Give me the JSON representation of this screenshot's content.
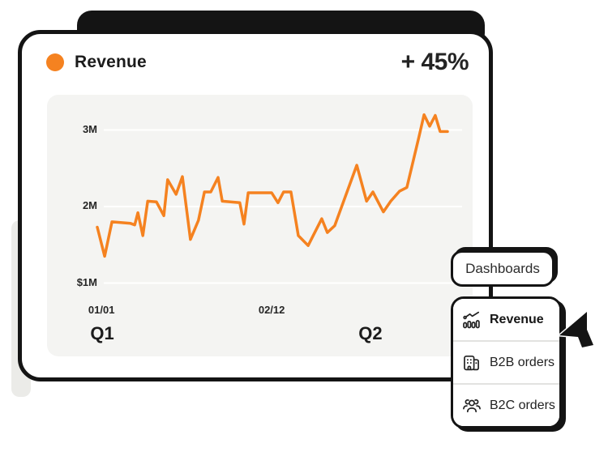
{
  "card": {
    "title": "Revenue",
    "delta": "+ 45%"
  },
  "overlay": {
    "dashboards_button": {
      "label": "Dashboards"
    },
    "menu": {
      "items": [
        {
          "label": "Revenue",
          "icon": "bar-chart-trend-icon",
          "active": true
        },
        {
          "label": "B2B orders",
          "icon": "building-icon",
          "active": false
        },
        {
          "label": "B2C orders",
          "icon": "people-group-icon",
          "active": false
        }
      ]
    }
  },
  "colors": {
    "accent_orange": "#F58220",
    "ink": "#141414",
    "panel_gray": "#f4f4f2",
    "gridline": "#ffffff"
  },
  "chart_data": {
    "type": "line",
    "title": "Revenue",
    "y_unit": "millions USD",
    "ylim": [
      1,
      3.4
    ],
    "grid": "horizontal",
    "legend": "none",
    "line_color": "#F58220",
    "y_ticks": [
      {
        "label": "$1M",
        "value": 1
      },
      {
        "label": "2M",
        "value": 2
      },
      {
        "label": "3M",
        "value": 3
      }
    ],
    "x_ticks": [
      {
        "label": "01/01",
        "pos": 0.012
      },
      {
        "label": "02/12",
        "pos": 0.498
      }
    ],
    "period_labels": [
      {
        "label": "Q1",
        "pos": 0.014
      },
      {
        "label": "Q2",
        "pos": 0.78
      }
    ],
    "series": [
      {
        "name": "Revenue",
        "points": [
          [
            0.0,
            1.73
          ],
          [
            0.021,
            1.35
          ],
          [
            0.042,
            1.8
          ],
          [
            0.095,
            1.78
          ],
          [
            0.107,
            1.76
          ],
          [
            0.116,
            1.92
          ],
          [
            0.13,
            1.62
          ],
          [
            0.144,
            2.07
          ],
          [
            0.169,
            2.06
          ],
          [
            0.19,
            1.88
          ],
          [
            0.201,
            2.35
          ],
          [
            0.225,
            2.16
          ],
          [
            0.243,
            2.39
          ],
          [
            0.266,
            1.57
          ],
          [
            0.289,
            1.82
          ],
          [
            0.306,
            2.19
          ],
          [
            0.324,
            2.19
          ],
          [
            0.345,
            2.38
          ],
          [
            0.357,
            2.07
          ],
          [
            0.407,
            2.05
          ],
          [
            0.419,
            1.77
          ],
          [
            0.431,
            2.18
          ],
          [
            0.498,
            2.18
          ],
          [
            0.516,
            2.05
          ],
          [
            0.532,
            2.19
          ],
          [
            0.553,
            2.19
          ],
          [
            0.574,
            1.62
          ],
          [
            0.602,
            1.49
          ],
          [
            0.641,
            1.84
          ],
          [
            0.657,
            1.66
          ],
          [
            0.678,
            1.75
          ],
          [
            0.741,
            2.54
          ],
          [
            0.769,
            2.07
          ],
          [
            0.787,
            2.19
          ],
          [
            0.817,
            1.93
          ],
          [
            0.838,
            2.07
          ],
          [
            0.863,
            2.2
          ],
          [
            0.884,
            2.25
          ],
          [
            0.919,
            2.92
          ],
          [
            0.933,
            3.2
          ],
          [
            0.949,
            3.05
          ],
          [
            0.965,
            3.19
          ],
          [
            0.979,
            2.98
          ],
          [
            1.0,
            2.98
          ]
        ]
      }
    ]
  }
}
